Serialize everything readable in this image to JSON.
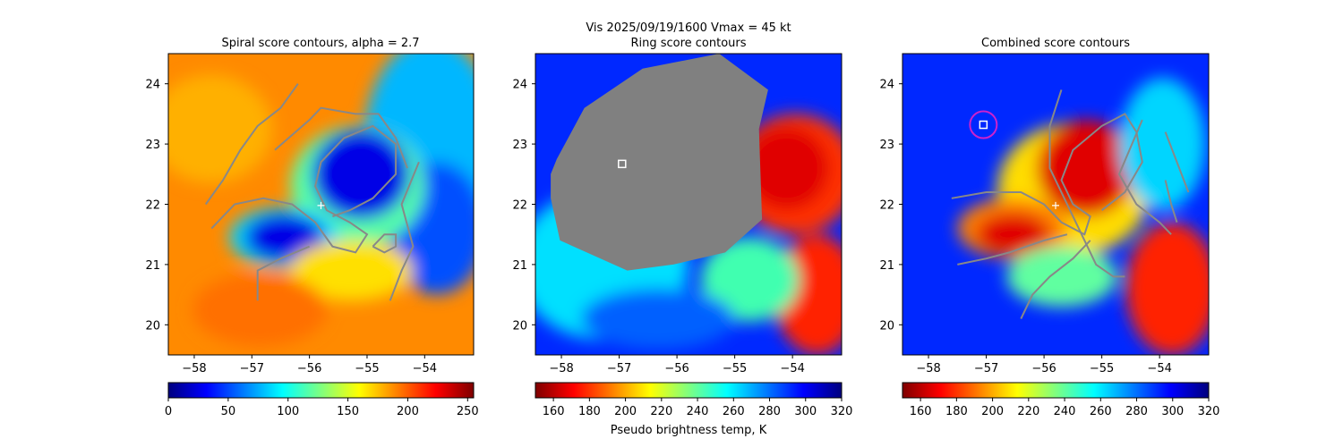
{
  "figure": {
    "suptitle": "Vis  2025/09/19/1600    Vmax = 45 kt"
  },
  "chart_data": [
    {
      "type": "heatmap",
      "title": "Spiral score contours, alpha =  2.7",
      "x_ticks": [
        -58,
        -57,
        -56,
        -55,
        -54
      ],
      "y_ticks": [
        20,
        21,
        22,
        23,
        24
      ],
      "xlim": [
        -58.45,
        -53.15
      ],
      "ylim": [
        19.5,
        24.5
      ],
      "colorbar": {
        "cmap": "jet",
        "range": [
          0,
          255
        ],
        "ticks": [
          0,
          50,
          100,
          150,
          200,
          250
        ],
        "label": ""
      },
      "marker": {
        "kind": "plus",
        "x": -55.8,
        "y": 21.98,
        "color": "#ffffff"
      },
      "contours": [
        [
          [
            -57.7,
            21.6
          ],
          [
            -57.3,
            22.0
          ],
          [
            -56.8,
            22.1
          ],
          [
            -56.3,
            22.0
          ],
          [
            -55.9,
            21.7
          ],
          [
            -55.6,
            21.3
          ],
          [
            -55.2,
            21.2
          ],
          [
            -55.0,
            21.5
          ],
          [
            -55.3,
            21.7
          ],
          [
            -55.7,
            21.9
          ],
          [
            -55.9,
            22.3
          ],
          [
            -55.8,
            22.7
          ],
          [
            -55.4,
            23.1
          ],
          [
            -54.9,
            23.3
          ],
          [
            -54.5,
            23.0
          ],
          [
            -54.5,
            22.5
          ],
          [
            -54.9,
            22.1
          ],
          [
            -55.3,
            21.9
          ],
          [
            -55.6,
            21.8
          ]
        ],
        [
          [
            -56.6,
            22.9
          ],
          [
            -56.0,
            23.4
          ],
          [
            -55.8,
            23.6
          ],
          [
            -55.2,
            23.5
          ],
          [
            -54.8,
            23.5
          ],
          [
            -54.5,
            23.1
          ],
          [
            -54.3,
            22.6
          ]
        ],
        [
          [
            -54.9,
            21.3
          ],
          [
            -54.7,
            21.5
          ],
          [
            -54.5,
            21.5
          ],
          [
            -54.5,
            21.3
          ],
          [
            -54.7,
            21.2
          ],
          [
            -54.9,
            21.3
          ]
        ],
        [
          [
            -54.1,
            22.7
          ],
          [
            -54.4,
            22.0
          ],
          [
            -54.2,
            21.3
          ],
          [
            -54.4,
            20.9
          ],
          [
            -54.6,
            20.4
          ]
        ],
        [
          [
            -56.9,
            20.4
          ],
          [
            -56.9,
            20.9
          ],
          [
            -56.5,
            21.1
          ],
          [
            -56.0,
            21.3
          ]
        ],
        [
          [
            -57.8,
            22.0
          ],
          [
            -57.5,
            22.4
          ],
          [
            -57.2,
            22.9
          ],
          [
            -56.9,
            23.3
          ],
          [
            -56.5,
            23.6
          ],
          [
            -56.2,
            24.0
          ]
        ]
      ]
    },
    {
      "type": "heatmap",
      "title": "Ring score contours",
      "x_ticks": [
        -58,
        -57,
        -56,
        -55,
        -54
      ],
      "y_ticks": [
        20,
        21,
        22,
        23,
        24
      ],
      "xlim": [
        -58.45,
        -53.15
      ],
      "ylim": [
        19.5,
        24.5
      ],
      "colorbar": {
        "cmap": "jet_r",
        "range": [
          150,
          320
        ],
        "ticks": [
          160,
          180,
          200,
          220,
          240,
          260,
          280,
          300,
          320
        ],
        "label": "Pseudo brightness temp, K"
      },
      "marker": {
        "kind": "square",
        "x": -56.95,
        "y": 22.67,
        "color": "#ffffff"
      },
      "mask": {
        "color": "#808080"
      },
      "contours": []
    },
    {
      "type": "heatmap",
      "title": "Combined score contours",
      "x_ticks": [
        -58,
        -57,
        -56,
        -55,
        -54
      ],
      "y_ticks": [
        20,
        21,
        22,
        23,
        24
      ],
      "xlim": [
        -58.45,
        -53.15
      ],
      "ylim": [
        19.5,
        24.5
      ],
      "colorbar": {
        "cmap": "jet_r",
        "range": [
          150,
          320
        ],
        "ticks": [
          160,
          180,
          200,
          220,
          240,
          260,
          280,
          300,
          320
        ],
        "label": ""
      },
      "marker": {
        "kind": "plus",
        "x": -55.8,
        "y": 21.98,
        "color": "#ffffff"
      },
      "marker2": {
        "kind": "square-circle",
        "x": -57.05,
        "y": 23.32,
        "color": "#ffffff",
        "ring_color": "#cc22cc"
      },
      "contours": [
        [
          [
            -57.6,
            22.1
          ],
          [
            -57.0,
            22.2
          ],
          [
            -56.4,
            22.2
          ],
          [
            -56.0,
            22.0
          ],
          [
            -55.7,
            21.7
          ],
          [
            -55.3,
            21.5
          ],
          [
            -55.2,
            21.8
          ],
          [
            -55.5,
            22.0
          ],
          [
            -55.7,
            22.4
          ],
          [
            -55.5,
            22.9
          ],
          [
            -55.0,
            23.3
          ],
          [
            -54.6,
            23.5
          ],
          [
            -54.4,
            23.2
          ],
          [
            -54.3,
            22.7
          ],
          [
            -54.6,
            22.2
          ],
          [
            -55.0,
            21.9
          ]
        ],
        [
          [
            -55.7,
            23.9
          ],
          [
            -55.9,
            23.3
          ],
          [
            -55.9,
            22.6
          ],
          [
            -55.6,
            22.0
          ],
          [
            -55.3,
            21.4
          ],
          [
            -55.1,
            21.0
          ],
          [
            -54.8,
            20.8
          ],
          [
            -54.6,
            20.8
          ]
        ],
        [
          [
            -54.3,
            23.4
          ],
          [
            -54.7,
            22.5
          ],
          [
            -54.4,
            22.0
          ],
          [
            -54.0,
            21.7
          ],
          [
            -53.8,
            21.5
          ]
        ],
        [
          [
            -53.9,
            22.4
          ],
          [
            -53.8,
            22.0
          ],
          [
            -53.7,
            21.7
          ]
        ],
        [
          [
            -53.9,
            23.2
          ],
          [
            -53.7,
            22.7
          ],
          [
            -53.5,
            22.2
          ]
        ],
        [
          [
            -57.5,
            21.0
          ],
          [
            -57.0,
            21.1
          ],
          [
            -56.6,
            21.2
          ],
          [
            -56.0,
            21.4
          ],
          [
            -55.6,
            21.5
          ]
        ],
        [
          [
            -56.4,
            20.1
          ],
          [
            -56.2,
            20.5
          ],
          [
            -55.9,
            20.8
          ],
          [
            -55.5,
            21.1
          ],
          [
            -55.2,
            21.4
          ]
        ]
      ]
    }
  ]
}
